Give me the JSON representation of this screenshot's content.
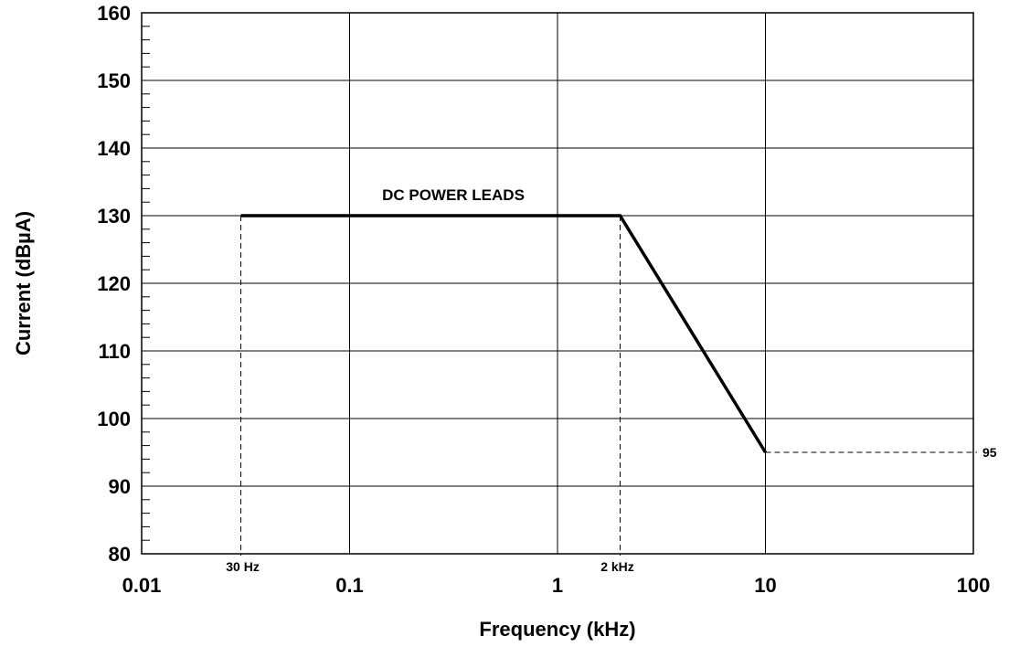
{
  "chart_data": {
    "type": "line",
    "xscale": "log",
    "xlim": [
      0.01,
      100
    ],
    "ylim": [
      80,
      160
    ],
    "xticks": [
      0.01,
      0.1,
      1,
      10,
      100
    ],
    "xtick_labels": [
      "0.01",
      "0.1",
      "1",
      "10",
      "100"
    ],
    "yticks": [
      80,
      90,
      100,
      110,
      120,
      130,
      140,
      150,
      160
    ],
    "ytick_labels": [
      "80",
      "90",
      "100",
      "110",
      "120",
      "130",
      "140",
      "150",
      "160"
    ],
    "ylabel": "Current (dBµA)",
    "xlabel": "Frequency (kHz)",
    "grid": true,
    "series": [
      {
        "name": "DC POWER LEADS",
        "x": [
          0.03,
          2,
          10
        ],
        "y": [
          130,
          130,
          95
        ]
      }
    ],
    "annotations": [
      {
        "text": "30 Hz",
        "x": 0.03,
        "y": 80
      },
      {
        "text": "2 kHz",
        "x": 2,
        "y": 80
      },
      {
        "text": "95",
        "x": 100,
        "y": 95
      }
    ],
    "colors": {
      "line": "#000000",
      "grid": "#000000"
    }
  }
}
